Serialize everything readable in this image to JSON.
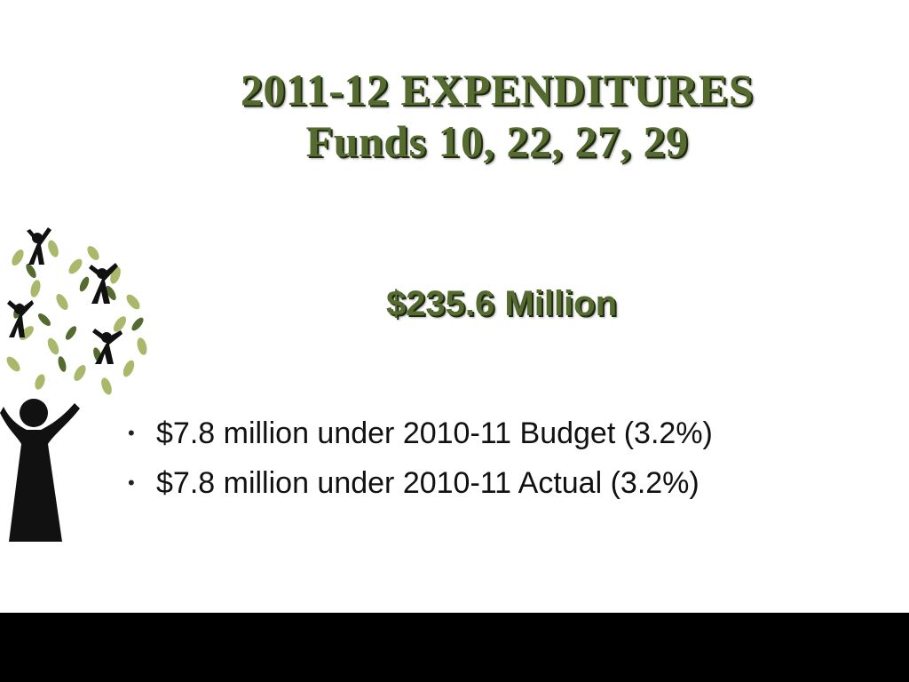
{
  "slide": {
    "title_line1": "2011-12 EXPENDITURES",
    "title_line2": "Funds 10, 22, 27, 29",
    "total": "$235.6 Million",
    "bullets": [
      {
        "marker": "•",
        "text": "$7.8 million under 2010-11 Budget (3.2%)"
      },
      {
        "marker": "•",
        "text": "$7.8 million under 2010-11 Actual (3.2%)"
      }
    ]
  },
  "icons": {
    "tree": "tree-of-people-icon"
  },
  "colors": {
    "title": "#556b2f",
    "leaf_light": "#a9b86a",
    "leaf_dark": "#556b2f",
    "figure": "#111111",
    "bottom_bar": "#000000"
  }
}
